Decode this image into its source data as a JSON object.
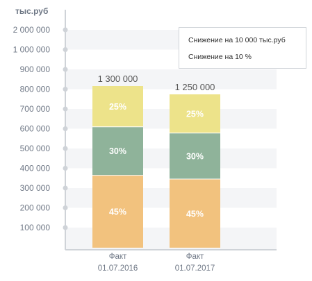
{
  "chart_data": {
    "type": "bar",
    "stacked": true,
    "ylabel": "тыс.руб",
    "y_ticks": [
      "100 000",
      "200 000",
      "300 000",
      "400 000",
      "500 000",
      "600 000",
      "700 000",
      "800 000",
      "900 000",
      "1 000 000",
      "2 000 000"
    ],
    "categories": [
      {
        "line1": "Факт",
        "line2": "01.07.2016"
      },
      {
        "line1": "Факт",
        "line2": "01.07.2017"
      }
    ],
    "totals": [
      "1  300 000",
      "1  250 000"
    ],
    "series": [
      {
        "label_values": [
          "45%",
          "45%"
        ],
        "values": [
          0.45,
          0.45
        ],
        "color": "#f2c27e"
      },
      {
        "label_values": [
          "30%",
          "30%"
        ],
        "values": [
          0.3,
          0.3
        ],
        "color": "#8fb39a"
      },
      {
        "label_values": [
          "25%",
          "25%"
        ],
        "values": [
          0.25,
          0.25
        ],
        "color": "#ede38a"
      }
    ],
    "colors": {
      "axis": "#cfd3d8",
      "grid_band": "#f4f5f7",
      "tick_text": "#6e7785",
      "segment_text": "#ffffff",
      "total_text": "#555555",
      "category_text": "#6e7785"
    }
  },
  "legend": {
    "items": [
      "Снижение на 10 000 тыс.руб",
      "Снижение на 10 %"
    ]
  }
}
